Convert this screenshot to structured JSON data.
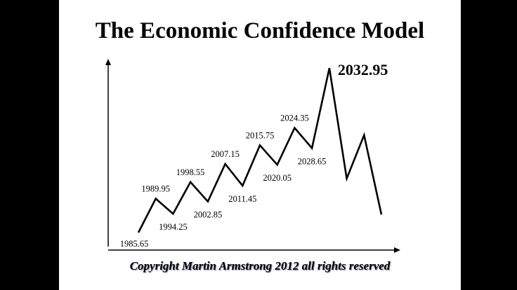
{
  "title": "The Economic Confidence Model",
  "copyright": "Copyright Martin Armstrong 2012 all rights reserved",
  "chart_data": {
    "type": "line",
    "title": "The Economic Confidence Model",
    "xlabel": "",
    "ylabel": "",
    "grid": false,
    "series": [
      {
        "points": [
          {
            "x": 1985.65,
            "y": 0.15,
            "label": "1985.65"
          },
          {
            "x": 1989.95,
            "y": 0.62,
            "label": "1989.95"
          },
          {
            "x": 1994.25,
            "y": 0.41,
            "label": "1994.25"
          },
          {
            "x": 1998.55,
            "y": 0.85,
            "label": "1998.55"
          },
          {
            "x": 2002.85,
            "y": 0.58,
            "label": "2002.85"
          },
          {
            "x": 2007.15,
            "y": 1.1,
            "label": "2007.15"
          },
          {
            "x": 2011.45,
            "y": 0.8,
            "label": "2011.45"
          },
          {
            "x": 2015.75,
            "y": 1.36,
            "label": "2015.75"
          },
          {
            "x": 2020.05,
            "y": 1.09,
            "label": "2020.05"
          },
          {
            "x": 2024.35,
            "y": 1.6,
            "label": "2024.35"
          },
          {
            "x": 2028.65,
            "y": 1.32,
            "label": "2028.65"
          },
          {
            "x": 2032.95,
            "y": 2.43,
            "label": "2032.95"
          },
          {
            "x": 2037.25,
            "y": 0.9
          },
          {
            "x": 2041.55,
            "y": 1.5
          },
          {
            "x": 2045.85,
            "y": 0.4
          }
        ]
      }
    ]
  }
}
